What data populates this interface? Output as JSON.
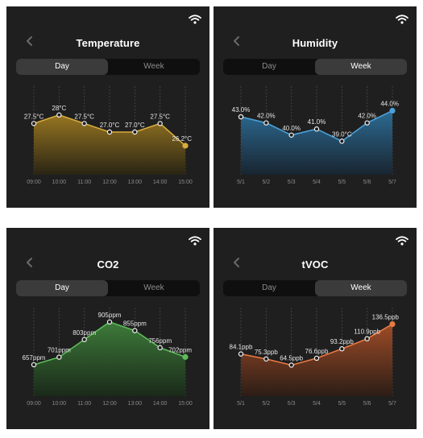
{
  "panels": [
    {
      "id": "temperature",
      "title": "Temperature",
      "tabs": [
        "Day",
        "Week"
      ],
      "active_tab": 0,
      "color": "#d8ab3c",
      "fill_top": "#9d7a22",
      "fill_bottom": "#2a2513",
      "icons": [
        "wifi-icon",
        "back-chevron-icon"
      ]
    },
    {
      "id": "humidity",
      "title": "Humidity",
      "tabs": [
        "Day",
        "Week"
      ],
      "active_tab": 1,
      "color": "#4aa0d8",
      "fill_top": "#2d6f99",
      "fill_bottom": "#182531",
      "icons": [
        "wifi-icon",
        "back-chevron-icon"
      ]
    },
    {
      "id": "co2",
      "title": "CO2",
      "tabs": [
        "Day",
        "Week"
      ],
      "active_tab": 0,
      "color": "#5cbc5a",
      "fill_top": "#3f7f3b",
      "fill_bottom": "#1a2a19",
      "icons": [
        "wifi-icon",
        "back-chevron-icon"
      ]
    },
    {
      "id": "tvoc",
      "title": "tVOC",
      "tabs": [
        "Day",
        "Week"
      ],
      "active_tab": 1,
      "color": "#ea7a44",
      "fill_top": "#a44e27",
      "fill_bottom": "#2d1d16",
      "icons": [
        "wifi-icon",
        "back-chevron-icon"
      ]
    }
  ],
  "chart_data": [
    {
      "type": "area",
      "title": "Temperature",
      "categories": [
        "09:00",
        "10:00",
        "11:00",
        "12:00",
        "13:00",
        "14:00",
        "15:00"
      ],
      "values": [
        27.5,
        28.0,
        27.5,
        27.0,
        27.0,
        27.5,
        26.2
      ],
      "labels": [
        "27.5°C",
        "28°C",
        "27.5°C",
        "27.0°C",
        "27.0°C",
        "27.5°C",
        "26.2°C"
      ],
      "ylim": [
        24.5,
        29.5
      ],
      "grid": "vertical-dashed"
    },
    {
      "type": "area",
      "title": "Humidity",
      "categories": [
        "5/1",
        "5/2",
        "5/3",
        "5/4",
        "5/5",
        "5/6",
        "5/7"
      ],
      "values": [
        43.0,
        42.0,
        40.0,
        41.0,
        39.0,
        42.0,
        44.0
      ],
      "labels": [
        "43.0%",
        "42.0%",
        "40.0%",
        "41.0%",
        "39.0°C",
        "42.0%",
        "44.0%"
      ],
      "ylim": [
        33.5,
        47.5
      ],
      "grid": "vertical-dashed"
    },
    {
      "type": "area",
      "title": "CO2",
      "categories": [
        "09:00",
        "10:00",
        "11:00",
        "12:00",
        "13:00",
        "14:00",
        "15:00"
      ],
      "values": [
        657,
        701,
        803,
        905,
        855,
        756,
        702
      ],
      "labels": [
        "657ppm",
        "701ppm",
        "803ppm",
        "905ppm",
        "855ppm",
        "756ppm",
        "702ppm"
      ],
      "ylim": [
        475,
        970
      ],
      "grid": "vertical-dashed"
    },
    {
      "type": "area",
      "title": "tVOC",
      "categories": [
        "5/1",
        "5/2",
        "5/3",
        "5/4",
        "5/5",
        "5/6",
        "5/7"
      ],
      "values": [
        84.1,
        75.3,
        64.5,
        76.6,
        93.2,
        110.9,
        136.5
      ],
      "labels": [
        "84.1ppb",
        "75.3ppb",
        "64.5ppb",
        "76.6ppb",
        "93.2ppb",
        "110.9ppb",
        "136.5ppb"
      ],
      "ylim": [
        10,
        160
      ],
      "grid": "vertical-dashed"
    }
  ]
}
